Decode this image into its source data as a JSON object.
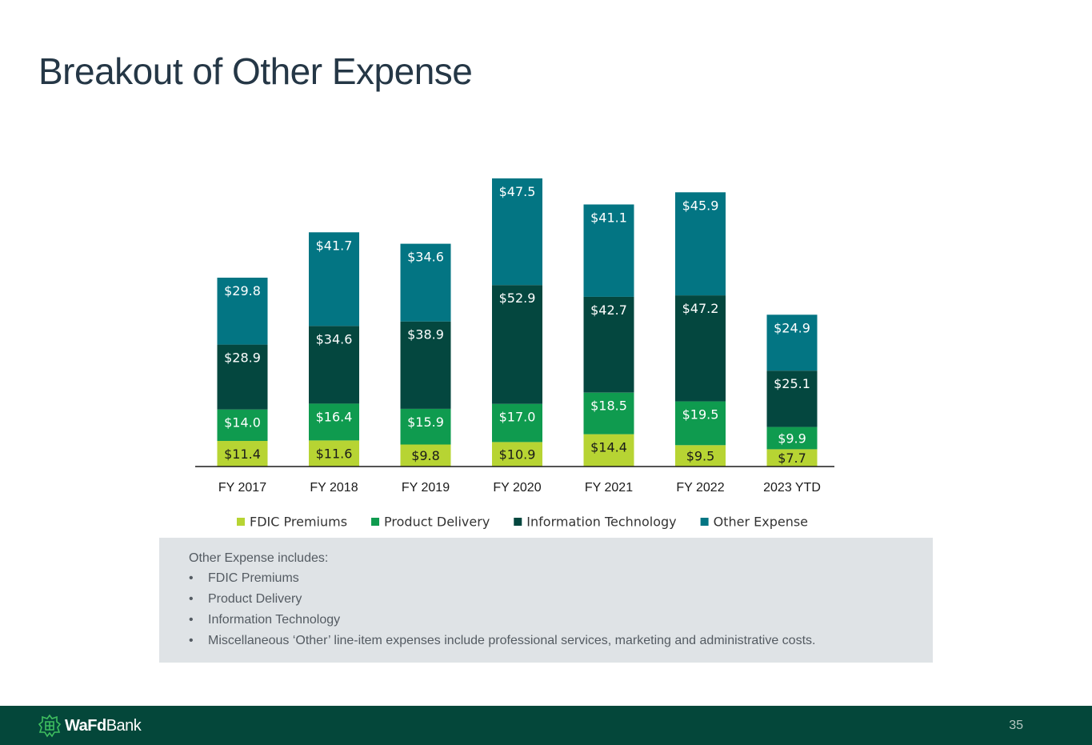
{
  "slide": {
    "title": "Breakout of Other Expense",
    "page_number": "35"
  },
  "brand": {
    "logo_bold": "WaFd",
    "logo_regular": "Bank",
    "logo_icon": "wafd-emblem-icon"
  },
  "notes": {
    "intro": "Other Expense includes:",
    "bullet": "•",
    "items": [
      "FDIC Premiums",
      "Product Delivery",
      "Information Technology",
      "Miscellaneous ‘Other’ line-item expenses include professional services, marketing and administrative costs."
    ]
  },
  "colors": {
    "fdic": "#b7d433",
    "product": "#0f9b4f",
    "it": "#04473f",
    "other": "#037583",
    "title": "#253746",
    "footer": "#04473a"
  },
  "chart_data": {
    "type": "bar",
    "stacked": true,
    "title": "",
    "xlabel": "",
    "ylabel": "",
    "value_prefix": "$",
    "categories": [
      "FY 2017",
      "FY 2018",
      "FY 2019",
      "FY 2020",
      "FY 2021",
      "FY 2022",
      "2023 YTD"
    ],
    "series": [
      {
        "name": "FDIC Premiums",
        "key": "fdic",
        "values": [
          11.4,
          11.6,
          9.8,
          10.9,
          14.4,
          9.5,
          7.7
        ]
      },
      {
        "name": "Product Delivery",
        "key": "product",
        "values": [
          14.0,
          16.4,
          15.9,
          17.0,
          18.5,
          19.5,
          9.9
        ]
      },
      {
        "name": "Information Technology",
        "key": "it",
        "values": [
          28.9,
          34.6,
          38.9,
          52.9,
          42.7,
          47.2,
          25.1
        ]
      },
      {
        "name": "Other Expense",
        "key": "other",
        "values": [
          29.8,
          41.7,
          34.6,
          47.5,
          41.1,
          45.9,
          24.9
        ]
      }
    ],
    "legend": "bottom",
    "grid": false
  }
}
